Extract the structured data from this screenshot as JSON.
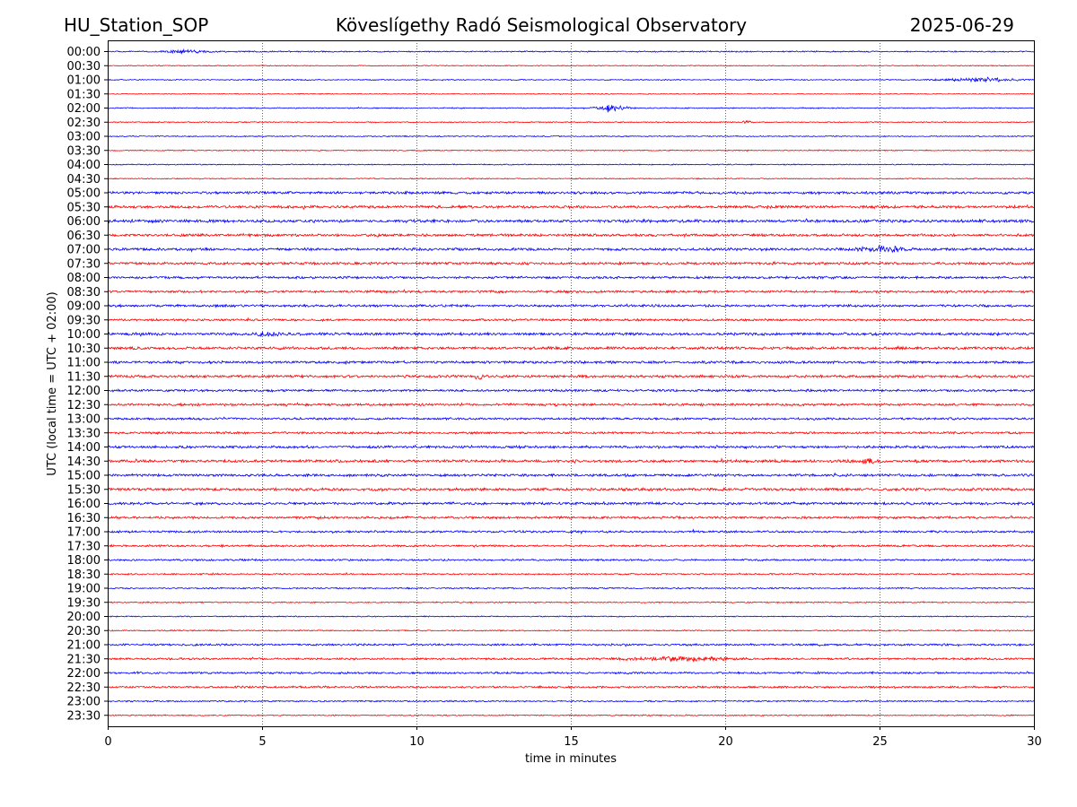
{
  "header": {
    "station": "HU_Station_SOP",
    "observatory": "Köveslígethy Radó Seismological Observatory",
    "date": "2025-06-29"
  },
  "colors": {
    "trace_a": "#0000ff",
    "trace_b": "#ff0000",
    "grid": "#000000"
  },
  "chart_data": {
    "type": "line",
    "xlabel": "time in minutes",
    "ylabel": "UTC (local time = UTC + 02:00)",
    "xlim": [
      0,
      30
    ],
    "x_ticks": [
      0,
      5,
      10,
      15,
      20,
      25,
      30
    ],
    "x_tick_labels": [
      "0",
      "5",
      "10",
      "15",
      "20",
      "25",
      "30"
    ],
    "grid": "vertical dotted lines at x ticks",
    "series": [
      {
        "label": "00:00",
        "color": "#0000ff",
        "noise": 0.35,
        "events": [
          {
            "at": 2.6,
            "amp": 0.7,
            "width": 1.0
          }
        ]
      },
      {
        "label": "00:30",
        "color": "#ff0000",
        "noise": 0.25,
        "events": []
      },
      {
        "label": "01:00",
        "color": "#0000ff",
        "noise": 0.3,
        "events": [
          {
            "at": 28.4,
            "amp": 1.0,
            "width": 1.6
          }
        ]
      },
      {
        "label": "01:30",
        "color": "#ff0000",
        "noise": 0.25,
        "events": []
      },
      {
        "label": "02:00",
        "color": "#0000ff",
        "noise": 0.3,
        "events": [
          {
            "at": 16.3,
            "amp": 1.4,
            "width": 0.7
          }
        ]
      },
      {
        "label": "02:30",
        "color": "#ff0000",
        "noise": 0.3,
        "events": [
          {
            "at": 20.7,
            "amp": 0.6,
            "width": 0.2
          }
        ]
      },
      {
        "label": "03:00",
        "color": "#0000ff",
        "noise": 0.3,
        "events": []
      },
      {
        "label": "03:30",
        "color": "#ff0000",
        "noise": 0.3,
        "events": []
      },
      {
        "label": "04:00",
        "color": "#0000ff",
        "noise": 0.3,
        "events": []
      },
      {
        "label": "04:30",
        "color": "#ff0000",
        "noise": 0.3,
        "events": []
      },
      {
        "label": "05:00",
        "color": "#0000ff",
        "noise": 0.7,
        "events": []
      },
      {
        "label": "05:30",
        "color": "#ff0000",
        "noise": 0.75,
        "events": []
      },
      {
        "label": "06:00",
        "color": "#0000ff",
        "noise": 0.8,
        "events": []
      },
      {
        "label": "06:30",
        "color": "#ff0000",
        "noise": 0.7,
        "events": []
      },
      {
        "label": "07:00",
        "color": "#0000ff",
        "noise": 0.75,
        "events": [
          {
            "at": 25.0,
            "amp": 1.2,
            "width": 1.2
          }
        ]
      },
      {
        "label": "07:30",
        "color": "#ff0000",
        "noise": 0.7,
        "events": []
      },
      {
        "label": "08:00",
        "color": "#0000ff",
        "noise": 0.65,
        "events": []
      },
      {
        "label": "08:30",
        "color": "#ff0000",
        "noise": 0.65,
        "events": []
      },
      {
        "label": "09:00",
        "color": "#0000ff",
        "noise": 0.65,
        "events": []
      },
      {
        "label": "09:30",
        "color": "#ff0000",
        "noise": 0.6,
        "events": []
      },
      {
        "label": "10:00",
        "color": "#0000ff",
        "noise": 0.75,
        "events": [
          {
            "at": 5.2,
            "amp": 1.0,
            "width": 0.5
          }
        ]
      },
      {
        "label": "10:30",
        "color": "#ff0000",
        "noise": 0.75,
        "events": []
      },
      {
        "label": "11:00",
        "color": "#0000ff",
        "noise": 0.7,
        "events": []
      },
      {
        "label": "11:30",
        "color": "#ff0000",
        "noise": 0.7,
        "events": [
          {
            "at": 12.0,
            "amp": 1.0,
            "width": 0.3
          }
        ]
      },
      {
        "label": "12:00",
        "color": "#0000ff",
        "noise": 0.65,
        "events": []
      },
      {
        "label": "12:30",
        "color": "#ff0000",
        "noise": 0.65,
        "events": []
      },
      {
        "label": "13:00",
        "color": "#0000ff",
        "noise": 0.6,
        "events": []
      },
      {
        "label": "13:30",
        "color": "#ff0000",
        "noise": 0.6,
        "events": []
      },
      {
        "label": "14:00",
        "color": "#0000ff",
        "noise": 0.7,
        "events": []
      },
      {
        "label": "14:30",
        "color": "#ff0000",
        "noise": 0.75,
        "events": [
          {
            "at": 24.5,
            "amp": 1.1,
            "width": 0.5
          }
        ]
      },
      {
        "label": "15:00",
        "color": "#0000ff",
        "noise": 0.7,
        "events": []
      },
      {
        "label": "15:30",
        "color": "#ff0000",
        "noise": 0.75,
        "events": []
      },
      {
        "label": "16:00",
        "color": "#0000ff",
        "noise": 0.7,
        "events": []
      },
      {
        "label": "16:30",
        "color": "#ff0000",
        "noise": 0.65,
        "events": []
      },
      {
        "label": "17:00",
        "color": "#0000ff",
        "noise": 0.6,
        "events": []
      },
      {
        "label": "17:30",
        "color": "#ff0000",
        "noise": 0.55,
        "events": []
      },
      {
        "label": "18:00",
        "color": "#0000ff",
        "noise": 0.5,
        "events": []
      },
      {
        "label": "18:30",
        "color": "#ff0000",
        "noise": 0.4,
        "events": []
      },
      {
        "label": "19:00",
        "color": "#0000ff",
        "noise": 0.4,
        "events": []
      },
      {
        "label": "19:30",
        "color": "#ff0000",
        "noise": 0.35,
        "events": []
      },
      {
        "label": "20:00",
        "color": "#0000ff",
        "noise": 0.3,
        "events": []
      },
      {
        "label": "20:30",
        "color": "#ff0000",
        "noise": 0.35,
        "events": []
      },
      {
        "label": "21:00",
        "color": "#0000ff",
        "noise": 0.55,
        "events": []
      },
      {
        "label": "21:30",
        "color": "#ff0000",
        "noise": 0.55,
        "events": [
          {
            "at": 18.5,
            "amp": 0.9,
            "width": 2.2
          }
        ]
      },
      {
        "label": "22:00",
        "color": "#0000ff",
        "noise": 0.55,
        "events": []
      },
      {
        "label": "22:30",
        "color": "#ff0000",
        "noise": 0.55,
        "events": []
      },
      {
        "label": "23:00",
        "color": "#0000ff",
        "noise": 0.4,
        "events": []
      },
      {
        "label": "23:30",
        "color": "#ff0000",
        "noise": 0.35,
        "events": []
      }
    ]
  }
}
